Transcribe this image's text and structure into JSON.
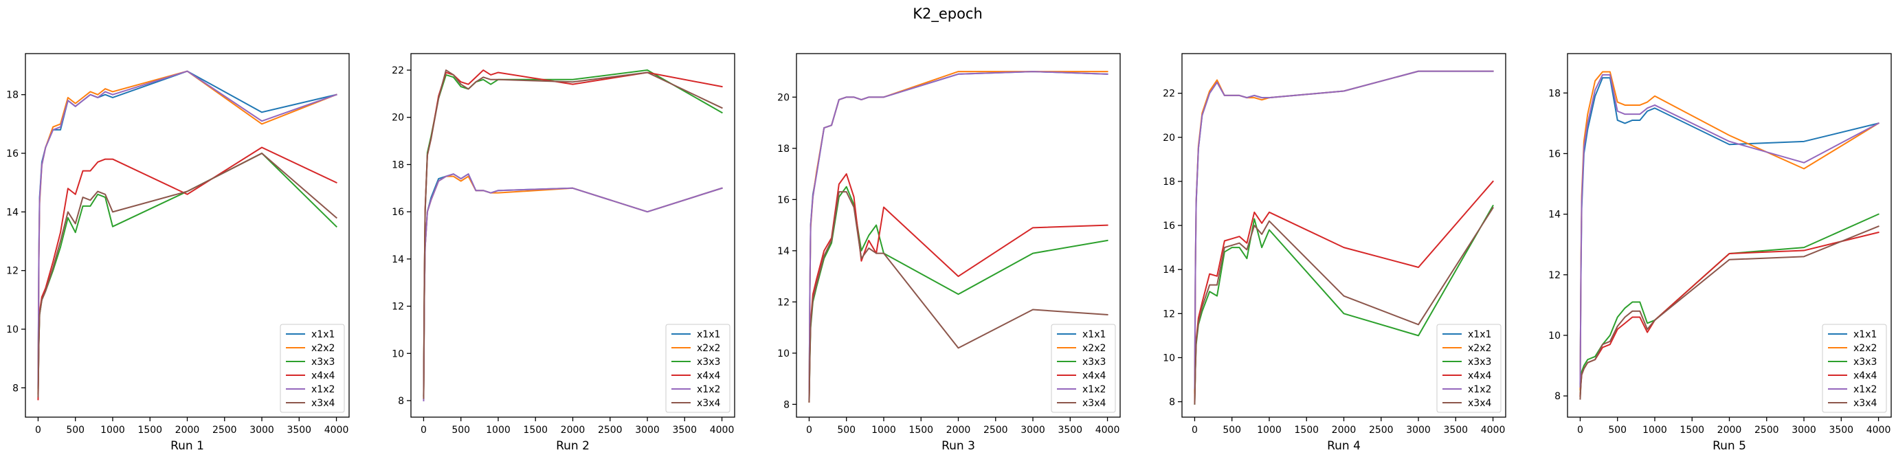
{
  "figure_title": "K2_epoch",
  "colors": {
    "x1x1": "#1f77b4",
    "x2x2": "#ff7f0e",
    "x3x3": "#2ca02c",
    "x4x4": "#d62728",
    "x1x2": "#9467bd",
    "x3x4": "#8c564b"
  },
  "chart_data": [
    {
      "type": "line",
      "title": "Run 1",
      "xlabel": "Run 1",
      "ylabel": "",
      "xlim": [
        -170,
        4170
      ],
      "ylim": [
        7.0,
        19.4
      ],
      "xticks": [
        0,
        500,
        1000,
        1500,
        2000,
        2500,
        3000,
        3500,
        4000
      ],
      "yticks": [
        8,
        10,
        12,
        14,
        16,
        18
      ],
      "legend": "lower-right",
      "x": [
        0,
        10,
        20,
        50,
        100,
        200,
        300,
        400,
        500,
        600,
        700,
        800,
        900,
        1000,
        2000,
        3000,
        4000
      ],
      "series": [
        {
          "name": "x1x1",
          "values": [
            8.0,
            12.5,
            14.5,
            15.7,
            16.2,
            16.8,
            16.8,
            17.8,
            17.6,
            17.8,
            18.0,
            17.9,
            18.0,
            17.9,
            18.8,
            17.4,
            18.0
          ]
        },
        {
          "name": "x2x2",
          "values": [
            7.8,
            12.3,
            14.3,
            15.6,
            16.2,
            16.9,
            17.0,
            17.9,
            17.7,
            17.9,
            18.1,
            18.0,
            18.2,
            18.1,
            18.8,
            17.0,
            18.0
          ]
        },
        {
          "name": "x3x3",
          "values": [
            7.8,
            9.5,
            10.5,
            11.0,
            11.3,
            12.0,
            12.8,
            13.8,
            13.3,
            14.2,
            14.2,
            14.6,
            14.5,
            13.5,
            14.7,
            16.0,
            13.5
          ]
        },
        {
          "name": "x4x4",
          "values": [
            7.6,
            9.6,
            10.6,
            11.1,
            11.4,
            12.3,
            13.3,
            14.8,
            14.6,
            15.4,
            15.4,
            15.7,
            15.8,
            15.8,
            14.6,
            16.2,
            15.0
          ]
        },
        {
          "name": "x1x2",
          "values": [
            8.1,
            12.4,
            14.4,
            15.6,
            16.2,
            16.8,
            16.9,
            17.8,
            17.6,
            17.8,
            18.0,
            17.9,
            18.1,
            18.0,
            18.8,
            17.1,
            18.0
          ]
        },
        {
          "name": "x3x4",
          "values": [
            7.7,
            9.5,
            10.5,
            11.0,
            11.3,
            12.1,
            13.0,
            14.0,
            13.6,
            14.5,
            14.4,
            14.7,
            14.6,
            14.0,
            14.7,
            16.0,
            13.8
          ]
        }
      ]
    },
    {
      "type": "line",
      "title": "Run 2",
      "xlabel": "Run 2",
      "ylabel": "",
      "xlim": [
        -170,
        4170
      ],
      "ylim": [
        7.3,
        22.7
      ],
      "xticks": [
        0,
        500,
        1000,
        1500,
        2000,
        2500,
        3000,
        3500,
        4000
      ],
      "yticks": [
        8,
        10,
        12,
        14,
        16,
        18,
        20,
        22
      ],
      "legend": "lower-right",
      "x": [
        0,
        10,
        20,
        50,
        100,
        200,
        300,
        400,
        500,
        600,
        700,
        800,
        900,
        1000,
        2000,
        3000,
        4000
      ],
      "series": [
        {
          "name": "x1x1",
          "values": [
            8.2,
            12.5,
            14.5,
            16.0,
            16.6,
            17.4,
            17.5,
            17.6,
            17.4,
            17.6,
            16.9,
            16.9,
            16.8,
            16.9,
            17.0,
            16.0,
            17.0
          ]
        },
        {
          "name": "x2x2",
          "values": [
            8.1,
            12.4,
            14.5,
            16.0,
            16.5,
            17.3,
            17.5,
            17.5,
            17.3,
            17.5,
            16.9,
            16.9,
            16.8,
            16.8,
            17.0,
            16.0,
            17.0
          ]
        },
        {
          "name": "x3x3",
          "values": [
            8.2,
            13.0,
            16.0,
            18.5,
            19.2,
            20.8,
            21.8,
            21.7,
            21.3,
            21.2,
            21.5,
            21.6,
            21.4,
            21.6,
            21.6,
            22.0,
            20.2
          ]
        },
        {
          "name": "x4x4",
          "values": [
            8.2,
            13.1,
            16.1,
            18.4,
            19.1,
            20.9,
            21.9,
            21.8,
            21.5,
            21.4,
            21.7,
            22.0,
            21.8,
            21.9,
            21.4,
            21.9,
            21.3
          ]
        },
        {
          "name": "x1x2",
          "values": [
            8.0,
            12.4,
            14.5,
            16.0,
            16.5,
            17.3,
            17.5,
            17.6,
            17.4,
            17.6,
            16.9,
            16.9,
            16.8,
            16.9,
            17.0,
            16.0,
            17.0
          ]
        },
        {
          "name": "x3x4",
          "values": [
            8.1,
            13.0,
            16.0,
            18.4,
            19.1,
            20.8,
            22.0,
            21.8,
            21.4,
            21.2,
            21.5,
            21.7,
            21.6,
            21.6,
            21.5,
            21.9,
            20.4
          ]
        }
      ]
    },
    {
      "type": "line",
      "title": "Run 3",
      "xlabel": "Run 3",
      "ylabel": "",
      "xlim": [
        -170,
        4170
      ],
      "ylim": [
        7.5,
        21.7
      ],
      "xticks": [
        0,
        500,
        1000,
        1500,
        2000,
        2500,
        3000,
        3500,
        4000
      ],
      "yticks": [
        8,
        10,
        12,
        14,
        16,
        18,
        20
      ],
      "legend": "lower-right",
      "x": [
        0,
        10,
        20,
        50,
        100,
        200,
        300,
        400,
        500,
        600,
        700,
        800,
        900,
        1000,
        2000,
        3000,
        4000
      ],
      "series": [
        {
          "name": "x1x1",
          "values": [
            8.2,
            12.5,
            15.0,
            16.2,
            17.0,
            18.8,
            18.9,
            19.9,
            20.0,
            20.0,
            19.9,
            20.0,
            20.0,
            20.0,
            20.9,
            21.0,
            20.9
          ]
        },
        {
          "name": "x2x2",
          "values": [
            8.1,
            12.4,
            14.9,
            16.1,
            17.1,
            18.8,
            18.9,
            19.9,
            20.0,
            20.0,
            19.9,
            20.0,
            20.0,
            20.0,
            21.0,
            21.0,
            21.0
          ]
        },
        {
          "name": "x3x3",
          "values": [
            8.1,
            9.8,
            11.0,
            12.0,
            12.6,
            13.7,
            14.3,
            16.1,
            16.5,
            15.8,
            14.0,
            14.6,
            15.0,
            13.9,
            12.3,
            13.9,
            14.4
          ]
        },
        {
          "name": "x4x4",
          "values": [
            8.1,
            10.0,
            11.2,
            12.3,
            12.9,
            14.0,
            14.5,
            16.6,
            17.0,
            16.1,
            13.6,
            14.4,
            13.9,
            15.7,
            13.0,
            14.9,
            15.0
          ]
        },
        {
          "name": "x1x2",
          "values": [
            8.2,
            12.5,
            15.0,
            16.1,
            17.0,
            18.8,
            18.9,
            19.9,
            20.0,
            20.0,
            19.9,
            20.0,
            20.0,
            20.0,
            20.9,
            21.0,
            20.9
          ]
        },
        {
          "name": "x3x4",
          "values": [
            8.1,
            9.9,
            11.1,
            12.1,
            12.7,
            13.8,
            14.4,
            16.3,
            16.3,
            15.7,
            13.7,
            14.1,
            13.9,
            13.9,
            10.2,
            11.7,
            11.5
          ]
        }
      ]
    },
    {
      "type": "line",
      "title": "Run 4",
      "xlabel": "Run 4",
      "ylabel": "",
      "xlim": [
        -170,
        4170
      ],
      "ylim": [
        7.3,
        23.8
      ],
      "xticks": [
        0,
        500,
        1000,
        1500,
        2000,
        2500,
        3000,
        3500,
        4000
      ],
      "yticks": [
        8,
        10,
        12,
        14,
        16,
        18,
        20,
        22
      ],
      "legend": "lower-right",
      "x": [
        0,
        10,
        20,
        50,
        100,
        200,
        300,
        400,
        500,
        600,
        700,
        800,
        900,
        1000,
        2000,
        3000,
        4000
      ],
      "series": [
        {
          "name": "x1x1",
          "values": [
            8.5,
            14.0,
            17.0,
            19.5,
            21.0,
            22.0,
            22.5,
            21.9,
            21.9,
            21.9,
            21.8,
            21.9,
            21.8,
            21.8,
            22.1,
            23.0,
            23.0
          ]
        },
        {
          "name": "x2x2",
          "values": [
            8.4,
            14.0,
            17.1,
            19.6,
            21.1,
            22.1,
            22.6,
            21.9,
            21.9,
            21.9,
            21.8,
            21.8,
            21.7,
            21.8,
            22.1,
            23.0,
            23.0
          ]
        },
        {
          "name": "x3x3",
          "values": [
            7.9,
            9.5,
            10.6,
            11.5,
            12.1,
            13.0,
            12.8,
            14.8,
            15.0,
            15.0,
            14.5,
            16.3,
            15.0,
            15.8,
            12.0,
            11.0,
            16.9
          ]
        },
        {
          "name": "x4x4",
          "values": [
            8.0,
            9.6,
            10.8,
            11.8,
            12.5,
            13.8,
            13.7,
            15.3,
            15.4,
            15.5,
            15.2,
            16.6,
            16.1,
            16.6,
            15.0,
            14.1,
            18.0
          ]
        },
        {
          "name": "x1x2",
          "values": [
            8.6,
            14.1,
            17.1,
            19.5,
            21.0,
            22.0,
            22.5,
            21.9,
            21.9,
            21.9,
            21.8,
            21.9,
            21.8,
            21.8,
            22.1,
            23.0,
            23.0
          ]
        },
        {
          "name": "x3x4",
          "values": [
            7.9,
            9.5,
            10.7,
            11.6,
            12.3,
            13.3,
            13.3,
            15.0,
            15.1,
            15.2,
            14.9,
            16.0,
            15.6,
            16.2,
            12.8,
            11.5,
            16.8
          ]
        }
      ]
    },
    {
      "type": "line",
      "title": "Run 5",
      "xlabel": "Run 5",
      "ylabel": "",
      "xlim": [
        -170,
        4170
      ],
      "ylim": [
        7.3,
        19.3
      ],
      "xticks": [
        0,
        500,
        1000,
        1500,
        2000,
        2500,
        3000,
        3500,
        4000
      ],
      "yticks": [
        8,
        10,
        12,
        14,
        16,
        18
      ],
      "legend": "lower-right",
      "x": [
        0,
        10,
        20,
        50,
        100,
        200,
        300,
        400,
        500,
        600,
        700,
        800,
        900,
        1000,
        2000,
        3000,
        4000
      ],
      "series": [
        {
          "name": "x1x1",
          "values": [
            8.4,
            12.0,
            14.2,
            16.0,
            16.8,
            17.9,
            18.5,
            18.5,
            17.1,
            17.0,
            17.1,
            17.1,
            17.4,
            17.5,
            16.3,
            16.4,
            17.0
          ]
        },
        {
          "name": "x2x2",
          "values": [
            8.2,
            12.3,
            14.6,
            16.4,
            17.3,
            18.4,
            18.7,
            18.7,
            17.7,
            17.6,
            17.6,
            17.6,
            17.7,
            17.9,
            16.6,
            15.5,
            17.0
          ]
        },
        {
          "name": "x3x3",
          "values": [
            8.0,
            8.5,
            8.8,
            9.0,
            9.2,
            9.3,
            9.7,
            10.0,
            10.6,
            10.9,
            11.1,
            11.1,
            10.4,
            10.5,
            12.7,
            12.9,
            14.0
          ]
        },
        {
          "name": "x4x4",
          "values": [
            8.0,
            8.4,
            8.7,
            8.9,
            9.1,
            9.2,
            9.6,
            9.7,
            10.2,
            10.4,
            10.6,
            10.6,
            10.1,
            10.5,
            12.7,
            12.8,
            13.4
          ]
        },
        {
          "name": "x1x2",
          "values": [
            8.3,
            12.1,
            14.4,
            16.2,
            17.0,
            18.1,
            18.6,
            18.6,
            17.4,
            17.3,
            17.3,
            17.3,
            17.5,
            17.6,
            16.4,
            15.7,
            17.0
          ]
        },
        {
          "name": "x3x4",
          "values": [
            7.9,
            8.4,
            8.7,
            8.9,
            9.1,
            9.2,
            9.7,
            9.8,
            10.3,
            10.6,
            10.8,
            10.8,
            10.2,
            10.5,
            12.5,
            12.6,
            13.6
          ]
        }
      ]
    }
  ]
}
